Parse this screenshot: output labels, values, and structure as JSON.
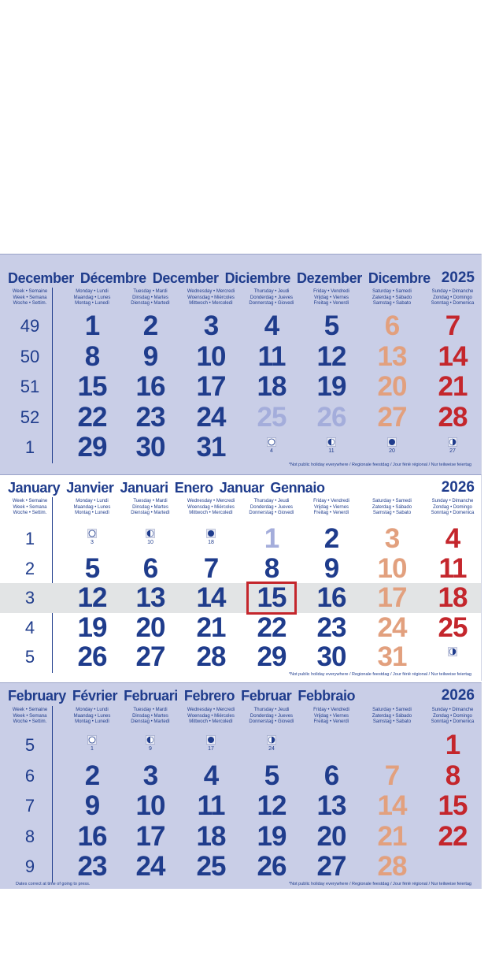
{
  "week_header": [
    "Week • Semaine",
    "Week • Semana",
    "Woche • Settim."
  ],
  "day_headers": [
    [
      "Monday • Lundi",
      "Maandag • Lunes",
      "Montag • Lunedì"
    ],
    [
      "Tuesday • Mardi",
      "Dinsdag • Martes",
      "Dienstag • Martedì"
    ],
    [
      "Wednesday • Mercredi",
      "Woensdag • Miércoles",
      "Mittwoch • Mercoledì"
    ],
    [
      "Thursday • Jeudi",
      "Donderdag • Jueves",
      "Donnerstag • Giovedì"
    ],
    [
      "Friday • Vendredi",
      "Vrijdag • Viernes",
      "Freitag • Venerdì"
    ],
    [
      "Saturday • Samedi",
      "Zaterdag • Sábado",
      "Samstag • Sabato"
    ],
    [
      "Sunday • Dimanche",
      "Zondag • Domingo",
      "Sonntag • Domenica"
    ]
  ],
  "months": [
    {
      "names": [
        "December",
        "Décembre",
        "December",
        "Diciembre",
        "Dezember",
        "Dicembre"
      ],
      "year": "2025",
      "weeks": [
        {
          "number": "49",
          "days": [
            "1",
            "2",
            "3",
            "4",
            "5",
            "6",
            "7"
          ]
        },
        {
          "number": "50",
          "days": [
            "8",
            "9",
            "10",
            "11",
            "12",
            "13",
            "14"
          ]
        },
        {
          "number": "51",
          "days": [
            "15",
            "16",
            "17",
            "18",
            "19",
            "20",
            "21"
          ]
        },
        {
          "number": "52",
          "days": [
            "22",
            "23",
            "24",
            {
              "day": "25",
              "holiday": true
            },
            {
              "day": "26",
              "holiday": true
            },
            "27",
            "28"
          ]
        },
        {
          "number": "1",
          "days": [
            "29",
            "30",
            "31",
            null,
            null,
            null,
            null
          ],
          "moons": [
            null,
            null,
            null,
            {
              "phase": "full",
              "day": "4"
            },
            {
              "phase": "last",
              "day": "11"
            },
            {
              "phase": "new",
              "day": "20"
            },
            {
              "phase": "first",
              "day": "27"
            }
          ]
        }
      ],
      "footnote": "*Not public holiday everywhere / Regionale feestdag / Jour férié régional / Nur teilweise feiertag"
    },
    {
      "names": [
        "January",
        "Janvier",
        "Januari",
        "Enero",
        "Januar",
        "Gennaio"
      ],
      "year": "2026",
      "current_week": "3",
      "today": "15",
      "weeks": [
        {
          "number": "1",
          "days": [
            null,
            null,
            null,
            {
              "day": "1",
              "holiday": true
            },
            "2",
            "3",
            "4"
          ],
          "moons": [
            {
              "phase": "full",
              "day": "3"
            },
            {
              "phase": "last",
              "day": "10"
            },
            {
              "phase": "new",
              "day": "18"
            },
            null,
            null,
            null,
            null
          ]
        },
        {
          "number": "2",
          "days": [
            "5",
            "6",
            "7",
            "8",
            "9",
            "10",
            "11"
          ]
        },
        {
          "number": "3",
          "days": [
            "12",
            "13",
            "14",
            "15",
            "16",
            "17",
            "18"
          ]
        },
        {
          "number": "4",
          "days": [
            "19",
            "20",
            "21",
            "22",
            "23",
            "24",
            "25"
          ]
        },
        {
          "number": "5",
          "days": [
            "26",
            "27",
            "28",
            "29",
            "30",
            "31",
            null
          ],
          "moons": [
            null,
            null,
            null,
            null,
            null,
            null,
            {
              "phase": "first"
            }
          ]
        }
      ],
      "footnote": "*Not public holiday everywhere / Regionale feestdag / Jour férié régional / Nur teilweise feiertag"
    },
    {
      "names": [
        "February",
        "Février",
        "Februari",
        "Febrero",
        "Februar",
        "Febbraio"
      ],
      "year": "2026",
      "weeks": [
        {
          "number": "5",
          "days": [
            null,
            null,
            null,
            null,
            null,
            null,
            "1"
          ],
          "moons": [
            {
              "phase": "full",
              "day": "1"
            },
            {
              "phase": "last",
              "day": "9"
            },
            {
              "phase": "new",
              "day": "17"
            },
            {
              "phase": "first",
              "day": "24"
            },
            null,
            null,
            null
          ]
        },
        {
          "number": "6",
          "days": [
            "2",
            "3",
            "4",
            "5",
            "6",
            "7",
            "8"
          ]
        },
        {
          "number": "7",
          "days": [
            "9",
            "10",
            "11",
            "12",
            "13",
            "14",
            "15"
          ]
        },
        {
          "number": "8",
          "days": [
            "16",
            "17",
            "18",
            "19",
            "20",
            "21",
            "22"
          ]
        },
        {
          "number": "9",
          "days": [
            "23",
            "24",
            "25",
            "26",
            "27",
            "28",
            null
          ]
        }
      ],
      "press_note": "Dates correct at time of going to press.",
      "footnote": "*Not public holiday everywhere / Regionale feestdag / Jour férié régional / Nur teilweise feiertag"
    }
  ]
}
